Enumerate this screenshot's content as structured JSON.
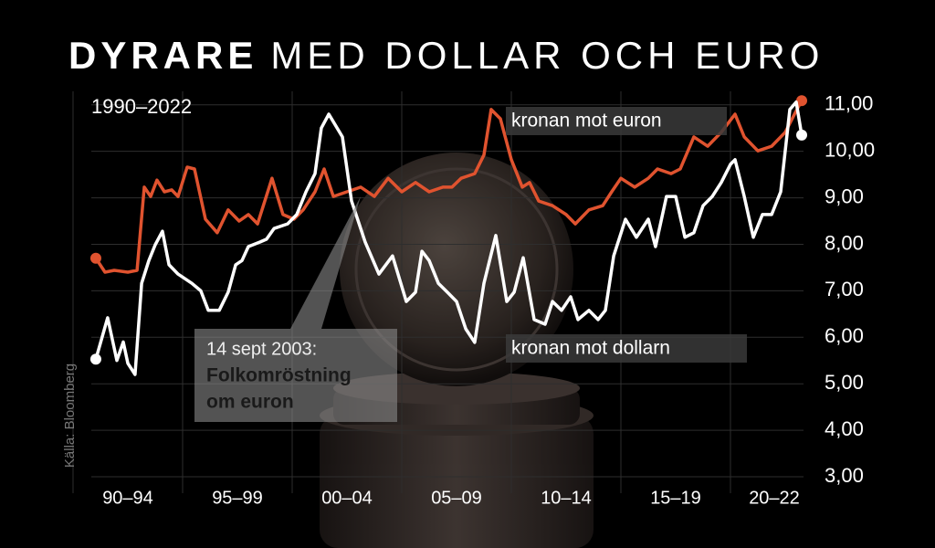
{
  "chart_data": {
    "type": "line",
    "title_bold": "DYRARE",
    "title_rest": "MED DOLLAR OCH EURO",
    "subtitle": "1990–2022",
    "source": "Källa: Bloomberg",
    "annotation": {
      "date": "14 sept 2003:",
      "text": [
        "Folkomröstning",
        "om euron"
      ]
    },
    "xlim": [
      1990,
      2024
    ],
    "xticks": [
      {
        "value": 1990,
        "label": "90–94"
      },
      {
        "value": 1995,
        "label": "95–99"
      },
      {
        "value": 2000,
        "label": "00–04"
      },
      {
        "value": 2005,
        "label": "05–09"
      },
      {
        "value": 2010,
        "label": "10–14"
      },
      {
        "value": 2015,
        "label": "15–19"
      },
      {
        "value": 2020,
        "label": "20–22"
      }
    ],
    "ylim": [
      3,
      11.3
    ],
    "yticks": [
      {
        "value": 3,
        "label": "3,00"
      },
      {
        "value": 4,
        "label": "4,00"
      },
      {
        "value": 5,
        "label": "5,00"
      },
      {
        "value": 6,
        "label": "6,00"
      },
      {
        "value": 7,
        "label": "7,00"
      },
      {
        "value": 8,
        "label": "8,00"
      },
      {
        "value": 9,
        "label": "9,00"
      },
      {
        "value": 10,
        "label": "10,00"
      },
      {
        "value": 11,
        "label": "11,00"
      }
    ],
    "grid": true,
    "series": [
      {
        "name": "kronan mot euron",
        "color": "#e0532f",
        "x": [
          1991.04,
          1991.46,
          1991.88,
          1992.5,
          1992.92,
          1993.25,
          1993.54,
          1993.83,
          1994.17,
          1994.5,
          1994.79,
          1995.21,
          1995.54,
          1996.04,
          1996.58,
          1997.08,
          1997.58,
          1998,
          1998.42,
          1999.08,
          1999.58,
          2000.08,
          2000.5,
          2001.04,
          2001.46,
          2001.88,
          2002.5,
          2003.13,
          2003.75,
          2004.38,
          2005,
          2005.63,
          2006.25,
          2006.88,
          2007.29,
          2007.71,
          2008.33,
          2008.75,
          2009.08,
          2009.5,
          2010,
          2010.5,
          2010.83,
          2011.25,
          2011.88,
          2012.5,
          2012.92,
          2013.54,
          2014.17,
          2014.58,
          2015,
          2015.63,
          2016.25,
          2016.67,
          2017.29,
          2017.71,
          2018.33,
          2018.96,
          2019.58,
          2020.21,
          2020.63,
          2021.25,
          2021.88,
          2022.5,
          2022.92,
          2023.25
        ],
        "values": [
          7.7,
          7.4,
          7.44,
          7.4,
          7.44,
          9.23,
          9.03,
          9.38,
          9.13,
          9.17,
          9.03,
          9.66,
          9.62,
          8.54,
          8.25,
          8.74,
          8.5,
          8.64,
          8.44,
          9.42,
          8.64,
          8.54,
          8.74,
          9.13,
          9.62,
          9.03,
          9.13,
          9.23,
          9.03,
          9.42,
          9.13,
          9.33,
          9.13,
          9.23,
          9.23,
          9.42,
          9.52,
          9.92,
          10.9,
          10.7,
          9.82,
          9.23,
          9.33,
          8.93,
          8.83,
          8.64,
          8.44,
          8.74,
          8.83,
          9.13,
          9.42,
          9.23,
          9.42,
          9.62,
          9.52,
          9.62,
          10.31,
          10.11,
          10.41,
          10.8,
          10.31,
          10.01,
          10.11,
          10.41,
          10.8,
          11.09
        ]
      },
      {
        "name": "kronan mot dollarn",
        "color": "#ffffff",
        "x": [
          1991.04,
          1991.58,
          1992,
          1992.29,
          1992.5,
          1992.83,
          1993.13,
          1993.46,
          1993.75,
          1994.08,
          1994.38,
          1994.79,
          1995.42,
          1995.83,
          1996.17,
          1996.67,
          1997.08,
          1997.42,
          1997.71,
          1998,
          1998.54,
          1998.83,
          1999.17,
          1999.79,
          2000.21,
          2000.63,
          2001.04,
          2001.33,
          2001.67,
          2002.29,
          2002.71,
          2003.33,
          2003.96,
          2004.58,
          2005.21,
          2005.63,
          2005.92,
          2006.25,
          2006.67,
          2007.08,
          2007.5,
          2007.92,
          2008.33,
          2008.75,
          2009.29,
          2009.79,
          2010.13,
          2010.54,
          2011.04,
          2011.54,
          2011.88,
          2012.29,
          2012.71,
          2013.04,
          2013.54,
          2013.96,
          2014.29,
          2014.67,
          2015.21,
          2015.71,
          2016.25,
          2016.58,
          2017.08,
          2017.5,
          2017.92,
          2018.33,
          2018.75,
          2019.17,
          2019.58,
          2020,
          2020.21,
          2020.63,
          2021.04,
          2021.46,
          2021.88,
          2022.29,
          2022.71,
          2023,
          2023.25
        ],
        "values": [
          5.53,
          6.42,
          5.5,
          5.9,
          5.44,
          5.2,
          7.16,
          7.65,
          7.99,
          8.28,
          7.56,
          7.36,
          7.16,
          7.0,
          6.58,
          6.58,
          6.97,
          7.56,
          7.65,
          7.95,
          8.05,
          8.11,
          8.34,
          8.44,
          8.64,
          9.13,
          9.52,
          10.5,
          10.8,
          10.31,
          8.93,
          8.05,
          7.36,
          7.75,
          6.77,
          6.97,
          7.85,
          7.65,
          7.16,
          6.97,
          6.77,
          6.18,
          5.89,
          7.16,
          8.19,
          6.77,
          6.97,
          7.71,
          6.38,
          6.28,
          6.77,
          6.58,
          6.87,
          6.38,
          6.58,
          6.38,
          6.58,
          7.75,
          8.54,
          8.15,
          8.54,
          7.95,
          9.03,
          9.03,
          8.15,
          8.25,
          8.83,
          9.03,
          9.33,
          9.72,
          9.82,
          9.03,
          8.15,
          8.64,
          8.64,
          9.13,
          10.9,
          11.06,
          10.35
        ]
      }
    ]
  }
}
